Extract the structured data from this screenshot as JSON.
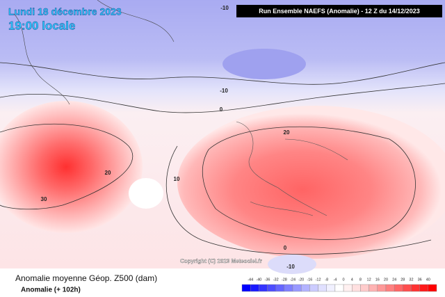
{
  "header": {
    "date": "Lundi 18 décembre 2023",
    "time": "19:00 locale",
    "run": "Run Ensemble NAEFS  (Anomalie) - 12 Z du 14/12/2023"
  },
  "contour_labels": [
    "-10",
    "-10",
    "0",
    "20",
    "20",
    "10",
    "30",
    "0",
    "-10"
  ],
  "copyright": "Copyright (C) 2023 Meteociel.fr",
  "footer": {
    "title": "Anomalie moyenne Géop. Z500 (dam)",
    "subtitle": "Anomalie (+ 102h)"
  },
  "colorbar": {
    "ticks": [
      -44,
      -40,
      -36,
      -32,
      -28,
      -24,
      -20,
      -16,
      -12,
      -8,
      -4,
      0,
      4,
      8,
      12,
      16,
      20,
      24,
      28,
      32,
      36,
      40
    ],
    "colors": [
      "#0000ff",
      "#1a1aff",
      "#3333ff",
      "#4d4dff",
      "#6666ff",
      "#8080ff",
      "#9999ff",
      "#b3b3ff",
      "#ccccff",
      "#e0e0ff",
      "#f0f0ff",
      "#ffffff",
      "#fff0f0",
      "#ffe0e0",
      "#ffcccc",
      "#ffb3b3",
      "#ff9999",
      "#ff8080",
      "#ff6666",
      "#ff4d4d",
      "#ff3333",
      "#ff1a1a",
      "#ff0000"
    ]
  }
}
